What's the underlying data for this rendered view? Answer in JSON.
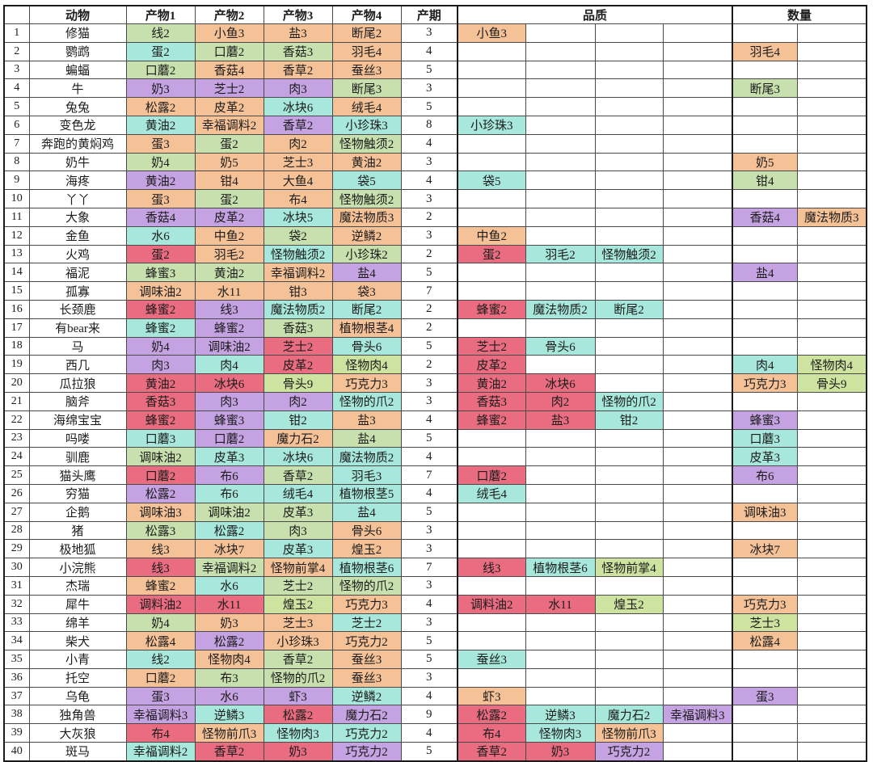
{
  "palette": {
    "o": "#f5c298",
    "g": "#c7e0ad",
    "y": "#cee3a0",
    "c": "#a7e7dc",
    "p": "#c5a2e2",
    "r": "#e96c80"
  },
  "table": {
    "headers": [
      "",
      "动物",
      "产物1",
      "产物2",
      "产物3",
      "产物4",
      "产期",
      "品质",
      "数量"
    ],
    "rows": [
      {
        "n": "1",
        "a": "修猫",
        "p": [
          [
            "线2",
            "g"
          ],
          [
            "小鱼3",
            "o"
          ],
          [
            "盐3",
            "o"
          ],
          [
            "断尾2",
            "o"
          ]
        ],
        "d": "3",
        "q": [
          [
            "小鱼3",
            "o"
          ]
        ],
        "m": []
      },
      {
        "n": "2",
        "a": "鹦鹉",
        "p": [
          [
            "蛋2",
            "c"
          ],
          [
            "口蘑2",
            "g"
          ],
          [
            "香菇3",
            "g"
          ],
          [
            "羽毛4",
            "o"
          ]
        ],
        "d": "4",
        "q": [],
        "m": [
          [
            "羽毛4",
            "o"
          ]
        ]
      },
      {
        "n": "3",
        "a": "蝙蝠",
        "p": [
          [
            "口蘑2",
            "g"
          ],
          [
            "香菇4",
            "o"
          ],
          [
            "香草2",
            "o"
          ],
          [
            "蚕丝3",
            "o"
          ]
        ],
        "d": "5",
        "q": [],
        "m": []
      },
      {
        "n": "4",
        "a": "牛",
        "p": [
          [
            "奶3",
            "p"
          ],
          [
            "芝士2",
            "p"
          ],
          [
            "肉3",
            "p"
          ],
          [
            "断尾3",
            "g"
          ]
        ],
        "d": "3",
        "q": [],
        "m": [
          [
            "断尾3",
            "g"
          ]
        ]
      },
      {
        "n": "5",
        "a": "兔兔",
        "p": [
          [
            "松露2",
            "o"
          ],
          [
            "皮革2",
            "o"
          ],
          [
            "冰块6",
            "c"
          ],
          [
            "绒毛4",
            "o"
          ]
        ],
        "d": "5",
        "q": [],
        "m": []
      },
      {
        "n": "6",
        "a": "变色龙",
        "p": [
          [
            "黄油2",
            "c"
          ],
          [
            "幸福调料2",
            "o"
          ],
          [
            "香草2",
            "p"
          ],
          [
            "小珍珠3",
            "c"
          ]
        ],
        "d": "8",
        "q": [
          [
            "小珍珠3",
            "c"
          ]
        ],
        "m": []
      },
      {
        "n": "7",
        "a": "奔跑的黄焖鸡",
        "p": [
          [
            "蛋3",
            "o"
          ],
          [
            "蛋2",
            "g"
          ],
          [
            "肉2",
            "o"
          ],
          [
            "怪物触须2",
            "g"
          ]
        ],
        "d": "4",
        "q": [],
        "m": []
      },
      {
        "n": "8",
        "a": "奶牛",
        "p": [
          [
            "奶4",
            "g"
          ],
          [
            "奶5",
            "o"
          ],
          [
            "芝士3",
            "o"
          ],
          [
            "黄油2",
            "o"
          ]
        ],
        "d": "3",
        "q": [],
        "m": [
          [
            "奶5",
            "o"
          ]
        ]
      },
      {
        "n": "9",
        "a": "海疼",
        "p": [
          [
            "黄油2",
            "p"
          ],
          [
            "钳4",
            "o"
          ],
          [
            "大鱼4",
            "o"
          ],
          [
            "袋5",
            "c"
          ]
        ],
        "d": "4",
        "q": [
          [
            "袋5",
            "c"
          ]
        ],
        "m": [
          [
            "钳4",
            "g"
          ]
        ]
      },
      {
        "n": "10",
        "a": "丫丫",
        "p": [
          [
            "蛋3",
            "o"
          ],
          [
            "蛋2",
            "g"
          ],
          [
            "布4",
            "o"
          ],
          [
            "怪物触须2",
            "g"
          ]
        ],
        "d": "3",
        "q": [],
        "m": []
      },
      {
        "n": "11",
        "a": "大象",
        "p": [
          [
            "香菇4",
            "p"
          ],
          [
            "皮革2",
            "p"
          ],
          [
            "冰块5",
            "c"
          ],
          [
            "魔法物质3",
            "o"
          ]
        ],
        "d": "2",
        "q": [],
        "m": [
          [
            "香菇4",
            "p"
          ],
          [
            "魔法物质3",
            "o"
          ]
        ]
      },
      {
        "n": "12",
        "a": "金鱼",
        "p": [
          [
            "水6",
            "c"
          ],
          [
            "中鱼2",
            "o"
          ],
          [
            "袋2",
            "g"
          ],
          [
            "逆鳞2",
            "o"
          ]
        ],
        "d": "3",
        "q": [
          [
            "中鱼2",
            "o"
          ]
        ],
        "m": []
      },
      {
        "n": "13",
        "a": "火鸡",
        "p": [
          [
            "蛋2",
            "r"
          ],
          [
            "羽毛2",
            "o"
          ],
          [
            "怪物触须2",
            "c"
          ],
          [
            "小珍珠2",
            "g"
          ]
        ],
        "d": "2",
        "q": [
          [
            "蛋2",
            "r"
          ],
          [
            "羽毛2",
            "c"
          ],
          [
            "怪物触须2",
            "c"
          ]
        ],
        "m": []
      },
      {
        "n": "14",
        "a": "福泥",
        "p": [
          [
            "蜂蜜3",
            "g"
          ],
          [
            "黄油2",
            "g"
          ],
          [
            "幸福调料2",
            "o"
          ],
          [
            "盐4",
            "p"
          ]
        ],
        "d": "5",
        "q": [],
        "m": [
          [
            "盐4",
            "p"
          ]
        ]
      },
      {
        "n": "15",
        "a": "孤寡",
        "p": [
          [
            "调味油2",
            "o"
          ],
          [
            "水11",
            "o"
          ],
          [
            "钳3",
            "o"
          ],
          [
            "袋3",
            "o"
          ]
        ],
        "d": "7",
        "q": [],
        "m": []
      },
      {
        "n": "16",
        "a": "长颈鹿",
        "p": [
          [
            "蜂蜜2",
            "r"
          ],
          [
            "线3",
            "p"
          ],
          [
            "魔法物质2",
            "c"
          ],
          [
            "断尾2",
            "c"
          ]
        ],
        "d": "2",
        "q": [
          [
            "蜂蜜2",
            "r"
          ],
          [
            "魔法物质2",
            "c"
          ],
          [
            "断尾2",
            "c"
          ]
        ],
        "m": []
      },
      {
        "n": "17",
        "a": "有bear来",
        "p": [
          [
            "蜂蜜2",
            "c"
          ],
          [
            "蜂蜜2",
            "p"
          ],
          [
            "香菇3",
            "g"
          ],
          [
            "植物根茎4",
            "o"
          ]
        ],
        "d": "2",
        "q": [],
        "m": []
      },
      {
        "n": "18",
        "a": "马",
        "p": [
          [
            "奶4",
            "p"
          ],
          [
            "调味油2",
            "p"
          ],
          [
            "芝士2",
            "r"
          ],
          [
            "骨头6",
            "c"
          ]
        ],
        "d": "5",
        "q": [
          [
            "芝士2",
            "r"
          ],
          [
            "骨头6",
            "c"
          ]
        ],
        "m": []
      },
      {
        "n": "19",
        "a": "西几",
        "p": [
          [
            "肉3",
            "p"
          ],
          [
            "肉4",
            "c"
          ],
          [
            "皮革2",
            "r"
          ],
          [
            "怪物肉4",
            "y"
          ]
        ],
        "d": "2",
        "q": [
          [
            "皮革2",
            "r"
          ]
        ],
        "m": [
          [
            "肉4",
            "c"
          ],
          [
            "怪物肉4",
            "y"
          ]
        ]
      },
      {
        "n": "20",
        "a": "瓜拉狼",
        "p": [
          [
            "黄油2",
            "r"
          ],
          [
            "冰块6",
            "r"
          ],
          [
            "骨头9",
            "y"
          ],
          [
            "巧克力3",
            "o"
          ]
        ],
        "d": "3",
        "q": [
          [
            "黄油2",
            "r"
          ],
          [
            "冰块6",
            "r"
          ]
        ],
        "m": [
          [
            "巧克力3",
            "o"
          ],
          [
            "骨头9",
            "y"
          ]
        ]
      },
      {
        "n": "21",
        "a": "脑斧",
        "p": [
          [
            "香菇3",
            "r"
          ],
          [
            "肉3",
            "p"
          ],
          [
            "肉2",
            "p"
          ],
          [
            "怪物的爪2",
            "c"
          ]
        ],
        "d": "3",
        "q": [
          [
            "香菇3",
            "r"
          ],
          [
            "肉2",
            "r"
          ],
          [
            "怪物的爪2",
            "c"
          ]
        ],
        "m": []
      },
      {
        "n": "22",
        "a": "海绵宝宝",
        "p": [
          [
            "蜂蜜2",
            "r"
          ],
          [
            "蜂蜜3",
            "p"
          ],
          [
            "钳2",
            "c"
          ],
          [
            "盐3",
            "o"
          ]
        ],
        "d": "4",
        "q": [
          [
            "蜂蜜2",
            "r"
          ],
          [
            "盐3",
            "r"
          ],
          [
            "钳2",
            "c"
          ]
        ],
        "m": [
          [
            "蜂蜜3",
            "p"
          ]
        ]
      },
      {
        "n": "23",
        "a": "吗喽",
        "p": [
          [
            "口蘑3",
            "c"
          ],
          [
            "口蘑2",
            "p"
          ],
          [
            "魔力石2",
            "o"
          ],
          [
            "盐4",
            "g"
          ]
        ],
        "d": "5",
        "q": [],
        "m": [
          [
            "口蘑3",
            "c"
          ]
        ]
      },
      {
        "n": "24",
        "a": "驯鹿",
        "p": [
          [
            "调味油2",
            "g"
          ],
          [
            "皮革3",
            "c"
          ],
          [
            "冰块6",
            "c"
          ],
          [
            "魔法物质2",
            "c"
          ]
        ],
        "d": "4",
        "q": [],
        "m": [
          [
            "皮革3",
            "c"
          ]
        ]
      },
      {
        "n": "25",
        "a": "猫头鹰",
        "p": [
          [
            "口蘑2",
            "r"
          ],
          [
            "布6",
            "p"
          ],
          [
            "香草2",
            "g"
          ],
          [
            "羽毛3",
            "c"
          ]
        ],
        "d": "7",
        "q": [
          [
            "口蘑2",
            "r"
          ]
        ],
        "m": [
          [
            "布6",
            "p"
          ]
        ]
      },
      {
        "n": "26",
        "a": "穷猫",
        "p": [
          [
            "松露2",
            "p"
          ],
          [
            "布6",
            "c"
          ],
          [
            "绒毛4",
            "c"
          ],
          [
            "植物根茎5",
            "c"
          ]
        ],
        "d": "4",
        "q": [
          [
            "绒毛4",
            "c"
          ]
        ],
        "m": []
      },
      {
        "n": "27",
        "a": "企鹅",
        "p": [
          [
            "调味油3",
            "o"
          ],
          [
            "调味油2",
            "g"
          ],
          [
            "皮革3",
            "g"
          ],
          [
            "盐4",
            "c"
          ]
        ],
        "d": "5",
        "q": [],
        "m": [
          [
            "调味油3",
            "o"
          ]
        ]
      },
      {
        "n": "28",
        "a": "猪",
        "p": [
          [
            "松露3",
            "g"
          ],
          [
            "松露2",
            "c"
          ],
          [
            "肉3",
            "g"
          ],
          [
            "骨头6",
            "o"
          ]
        ],
        "d": "3",
        "q": [],
        "m": []
      },
      {
        "n": "29",
        "a": "极地狐",
        "p": [
          [
            "线3",
            "o"
          ],
          [
            "冰块7",
            "o"
          ],
          [
            "皮革3",
            "c"
          ],
          [
            "煌玉2",
            "o"
          ]
        ],
        "d": "3",
        "q": [],
        "m": [
          [
            "冰块7",
            "o"
          ]
        ]
      },
      {
        "n": "30",
        "a": "小浣熊",
        "p": [
          [
            "线3",
            "r"
          ],
          [
            "幸福调料2",
            "g"
          ],
          [
            "怪物前掌4",
            "o"
          ],
          [
            "植物根茎6",
            "c"
          ]
        ],
        "d": "7",
        "q": [
          [
            "线3",
            "r"
          ],
          [
            "植物根茎6",
            "c"
          ],
          [
            "怪物前掌4",
            "y"
          ]
        ],
        "m": []
      },
      {
        "n": "31",
        "a": "杰瑞",
        "p": [
          [
            "蜂蜜2",
            "o"
          ],
          [
            "水6",
            "c"
          ],
          [
            "芝士2",
            "g"
          ],
          [
            "怪物的爪2",
            "g"
          ]
        ],
        "d": "3",
        "q": [],
        "m": []
      },
      {
        "n": "32",
        "a": "犀牛",
        "p": [
          [
            "调料油2",
            "r"
          ],
          [
            "水11",
            "r"
          ],
          [
            "煌玉2",
            "y"
          ],
          [
            "巧克力3",
            "o"
          ]
        ],
        "d": "4",
        "q": [
          [
            "调料油2",
            "r"
          ],
          [
            "水11",
            "r"
          ],
          [
            "煌玉2",
            "y"
          ]
        ],
        "m": [
          [
            "巧克力3",
            "o"
          ]
        ]
      },
      {
        "n": "33",
        "a": "绵羊",
        "p": [
          [
            "奶4",
            "g"
          ],
          [
            "奶3",
            "o"
          ],
          [
            "芝士3",
            "o"
          ],
          [
            "芝士2",
            "c"
          ]
        ],
        "d": "3",
        "q": [],
        "m": [
          [
            "芝士3",
            "y"
          ]
        ]
      },
      {
        "n": "34",
        "a": "柴犬",
        "p": [
          [
            "松露4",
            "o"
          ],
          [
            "松露2",
            "p"
          ],
          [
            "小珍珠3",
            "o"
          ],
          [
            "巧克力2",
            "o"
          ]
        ],
        "d": "5",
        "q": [],
        "m": [
          [
            "松露4",
            "o"
          ]
        ]
      },
      {
        "n": "35",
        "a": "小青",
        "p": [
          [
            "线2",
            "c"
          ],
          [
            "怪物肉4",
            "o"
          ],
          [
            "香草2",
            "g"
          ],
          [
            "蚕丝3",
            "o"
          ]
        ],
        "d": "5",
        "q": [
          [
            "蚕丝3",
            "c"
          ]
        ],
        "m": []
      },
      {
        "n": "36",
        "a": "托空",
        "p": [
          [
            "口蘑2",
            "o"
          ],
          [
            "布3",
            "g"
          ],
          [
            "怪物的爪2",
            "g"
          ],
          [
            "蚕丝3",
            "o"
          ]
        ],
        "d": "3",
        "q": [],
        "m": []
      },
      {
        "n": "37",
        "a": "乌龟",
        "p": [
          [
            "蛋3",
            "p"
          ],
          [
            "水6",
            "p"
          ],
          [
            "虾3",
            "p"
          ],
          [
            "逆鳞2",
            "c"
          ]
        ],
        "d": "4",
        "q": [
          [
            "虾3",
            "o"
          ]
        ],
        "m": [
          [
            "蛋3",
            "p"
          ]
        ]
      },
      {
        "n": "38",
        "a": "独角兽",
        "p": [
          [
            "幸福调料3",
            "p"
          ],
          [
            "逆鳞3",
            "c"
          ],
          [
            "松露2",
            "r"
          ],
          [
            "魔力石2",
            "p"
          ]
        ],
        "d": "9",
        "q": [
          [
            "松露2",
            "r"
          ],
          [
            "逆鳞3",
            "c"
          ],
          [
            "魔力石2",
            "c"
          ],
          [
            "幸福调料3",
            "p"
          ]
        ],
        "m": []
      },
      {
        "n": "39",
        "a": "大灰狼",
        "p": [
          [
            "布4",
            "r"
          ],
          [
            "怪物前爪3",
            "o"
          ],
          [
            "怪物肉3",
            "c"
          ],
          [
            "巧克力2",
            "c"
          ]
        ],
        "d": "4",
        "q": [
          [
            "布4",
            "r"
          ],
          [
            "怪物肉3",
            "c"
          ],
          [
            "怪物前爪3",
            "o"
          ]
        ],
        "m": []
      },
      {
        "n": "40",
        "a": "斑马",
        "p": [
          [
            "幸福调料2",
            "c"
          ],
          [
            "香草2",
            "r"
          ],
          [
            "奶3",
            "r"
          ],
          [
            "巧克力2",
            "p"
          ]
        ],
        "d": "5",
        "q": [
          [
            "香草2",
            "r"
          ],
          [
            "奶3",
            "r"
          ],
          [
            "巧克力2",
            "p"
          ]
        ],
        "m": []
      }
    ]
  }
}
